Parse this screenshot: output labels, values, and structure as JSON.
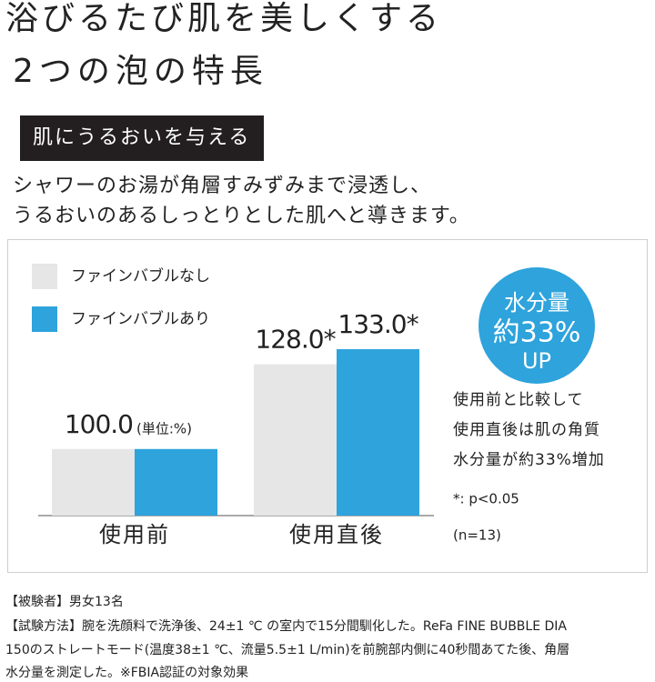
{
  "title": [
    "浴びるたび肌を美しくする",
    "2つの泡の特長"
  ],
  "heading": "肌にうるおいを与える",
  "description": [
    "シャワーのお湯が角層すみずみまで浸透し、",
    "うるおいのあるしっとりとした肌へと導きます。"
  ],
  "chart_data": {
    "type": "bar",
    "categories": [
      "使用前",
      "使用直後"
    ],
    "series": [
      {
        "name": "ファインバブルなし",
        "color": "#e6e6e6",
        "values": [
          100.0,
          128.0
        ],
        "value_labels": [
          "100.0",
          "128.0*"
        ]
      },
      {
        "name": "ファインバブルあり",
        "color": "#2ea3dc",
        "values": [
          100.0,
          133.0
        ],
        "value_labels": [
          null,
          "133.0*"
        ]
      }
    ],
    "unit_note": "(単位:%)",
    "ylim": [
      78,
      136
    ],
    "badge": [
      "水分量",
      "約33%",
      "UP"
    ],
    "badge_color": "#2ea3dc",
    "notes": [
      "使用前と比較して",
      "使用直後は肌の角質",
      "水分量が約33%増加"
    ],
    "significance": "*: p<0.05",
    "sample": "(n=13)"
  },
  "footnotes": [
    "【被験者】男女13名",
    "【試験方法】腕を洗顔料で洗浄後、24±1 ℃ の室内で15分間馴化した。ReFa FINE BUBBLE DIA",
    "150のストレートモード(温度38±1 ℃、流量5.5±1 L/min)を前腕部内側に40秒間あてた後、角層",
    "水分量を測定した。※FBIA認証の対象効果"
  ]
}
